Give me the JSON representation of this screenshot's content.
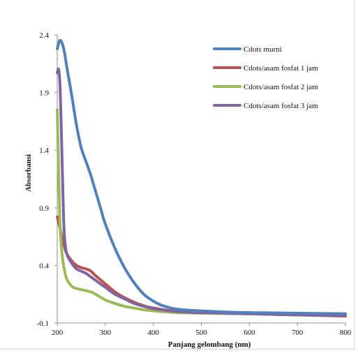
{
  "chart_data": {
    "type": "line",
    "xlabel": "Panjang gelombang (nm)",
    "ylabel": "Absorbansi",
    "xlim": [
      200,
      800
    ],
    "ylim": [
      -0.1,
      2.4
    ],
    "x_ticks": [
      "200",
      "300",
      "400",
      "500",
      "600",
      "700",
      "800"
    ],
    "y_ticks": [
      "-0.1",
      "0.4",
      "0.9",
      "1.4",
      "1.9",
      "2.4"
    ],
    "legend_position": "top-right",
    "series": [
      {
        "name": "Cdots murni",
        "color": "#4f81bd",
        "points": [
          [
            200,
            2.28
          ],
          [
            205,
            2.35
          ],
          [
            210,
            2.33
          ],
          [
            215,
            2.25
          ],
          [
            220,
            2.12
          ],
          [
            230,
            1.88
          ],
          [
            240,
            1.62
          ],
          [
            250,
            1.42
          ],
          [
            260,
            1.3
          ],
          [
            270,
            1.18
          ],
          [
            280,
            1.04
          ],
          [
            290,
            0.9
          ],
          [
            300,
            0.76
          ],
          [
            320,
            0.55
          ],
          [
            340,
            0.38
          ],
          [
            360,
            0.25
          ],
          [
            380,
            0.15
          ],
          [
            400,
            0.09
          ],
          [
            420,
            0.05
          ],
          [
            450,
            0.02
          ],
          [
            500,
            0.005
          ],
          [
            550,
            -0.005
          ],
          [
            600,
            -0.01
          ],
          [
            700,
            -0.015
          ],
          [
            800,
            -0.02
          ]
        ]
      },
      {
        "name": "Cdots/asam fosfat 1 jam",
        "color": "#c0504d",
        "points": [
          [
            200,
            0.82
          ],
          [
            205,
            0.74
          ],
          [
            210,
            0.64
          ],
          [
            215,
            0.56
          ],
          [
            220,
            0.5
          ],
          [
            230,
            0.44
          ],
          [
            240,
            0.4
          ],
          [
            250,
            0.38
          ],
          [
            260,
            0.37
          ],
          [
            270,
            0.35
          ],
          [
            280,
            0.31
          ],
          [
            300,
            0.24
          ],
          [
            320,
            0.17
          ],
          [
            340,
            0.12
          ],
          [
            360,
            0.08
          ],
          [
            380,
            0.05
          ],
          [
            400,
            0.03
          ],
          [
            450,
            0.0
          ],
          [
            500,
            -0.01
          ],
          [
            600,
            -0.02
          ],
          [
            700,
            -0.03
          ],
          [
            800,
            -0.04
          ]
        ]
      },
      {
        "name": "Cdots/asam fosfat 2 jam",
        "color": "#9bbb59",
        "points": [
          [
            200,
            1.75
          ],
          [
            203,
            1.2
          ],
          [
            206,
            0.75
          ],
          [
            210,
            0.5
          ],
          [
            215,
            0.36
          ],
          [
            220,
            0.28
          ],
          [
            230,
            0.22
          ],
          [
            240,
            0.2
          ],
          [
            250,
            0.19
          ],
          [
            260,
            0.18
          ],
          [
            270,
            0.17
          ],
          [
            280,
            0.15
          ],
          [
            300,
            0.1
          ],
          [
            320,
            0.07
          ],
          [
            340,
            0.045
          ],
          [
            360,
            0.03
          ],
          [
            380,
            0.015
          ],
          [
            400,
            0.005
          ],
          [
            450,
            -0.01
          ],
          [
            500,
            -0.015
          ],
          [
            600,
            -0.02
          ],
          [
            700,
            -0.02
          ],
          [
            800,
            -0.02
          ]
        ]
      },
      {
        "name": "Cdots/asam fosfat 3 jam",
        "color": "#8064a2",
        "points": [
          [
            200,
            2.07
          ],
          [
            203,
            2.1
          ],
          [
            206,
            1.95
          ],
          [
            209,
            1.5
          ],
          [
            212,
            1.0
          ],
          [
            215,
            0.65
          ],
          [
            220,
            0.5
          ],
          [
            230,
            0.42
          ],
          [
            240,
            0.37
          ],
          [
            250,
            0.35
          ],
          [
            260,
            0.33
          ],
          [
            270,
            0.3
          ],
          [
            280,
            0.27
          ],
          [
            300,
            0.21
          ],
          [
            320,
            0.15
          ],
          [
            340,
            0.11
          ],
          [
            360,
            0.07
          ],
          [
            380,
            0.045
          ],
          [
            400,
            0.025
          ],
          [
            450,
            0.0
          ],
          [
            500,
            -0.01
          ],
          [
            600,
            -0.02
          ],
          [
            700,
            -0.03
          ],
          [
            800,
            -0.035
          ]
        ]
      }
    ]
  }
}
